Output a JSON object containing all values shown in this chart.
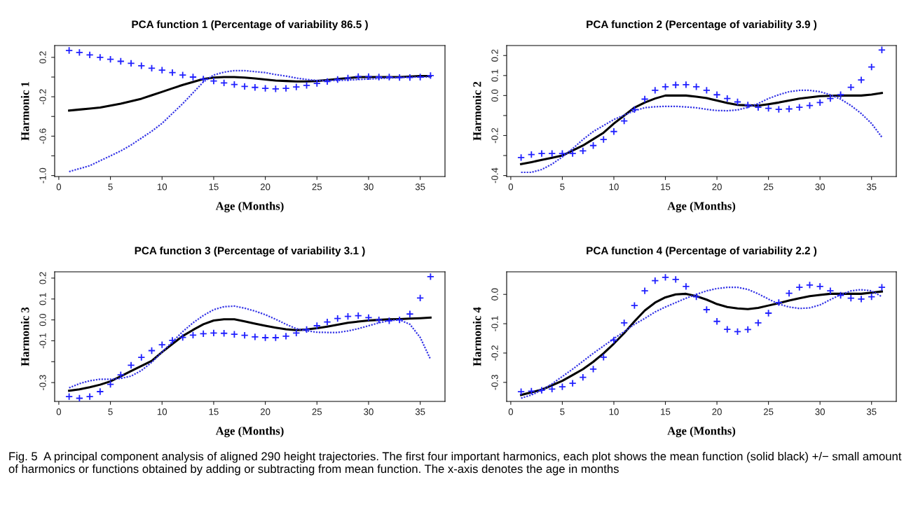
{
  "chart_data": [
    {
      "type": "line",
      "title": "PCA function 1 (Percentage of variability 86.5 )",
      "xlabel": "Age (Months)",
      "ylabel": "Harmonic 1",
      "xlim": [
        -0.4,
        37.4
      ],
      "xticks": [
        0,
        5,
        10,
        15,
        20,
        25,
        30,
        35
      ],
      "ylim": [
        -1.01,
        0.32
      ],
      "yticks": [
        {
          "value": -1.0,
          "label": "-1.0"
        },
        {
          "value": -0.8,
          "label": null
        },
        -0.6,
        {
          "value": -0.4,
          "label": null
        },
        -0.2,
        {
          "value": 0.0,
          "label": null
        },
        0.2
      ],
      "grid": false,
      "x": [
        1,
        2,
        3,
        4,
        5,
        6,
        7,
        8,
        9,
        10,
        11,
        12,
        13,
        14,
        15,
        16,
        17,
        18,
        19,
        20,
        21,
        22,
        23,
        24,
        25,
        26,
        27,
        28,
        29,
        30,
        31,
        32,
        33,
        34,
        35,
        36
      ],
      "series": [
        {
          "type": "line",
          "color": "#000000",
          "line_style": "solid",
          "values": [
            -0.34,
            -0.33,
            -0.32,
            -0.31,
            -0.29,
            -0.27,
            -0.245,
            -0.22,
            -0.185,
            -0.15,
            -0.115,
            -0.08,
            -0.05,
            -0.02,
            -0.005,
            0.0,
            0.0,
            -0.005,
            -0.015,
            -0.025,
            -0.035,
            -0.04,
            -0.045,
            -0.045,
            -0.04,
            -0.03,
            -0.02,
            -0.01,
            0.0,
            0.0,
            0.0,
            0.0,
            0.0,
            0.005,
            0.01,
            0.01
          ]
        },
        {
          "type": "scatter",
          "color": "#2020ff",
          "marker": "cross",
          "values": [
            0.27,
            0.25,
            0.225,
            0.2,
            0.18,
            0.16,
            0.14,
            0.115,
            0.09,
            0.07,
            0.045,
            0.02,
            0.0,
            -0.02,
            -0.04,
            -0.06,
            -0.075,
            -0.095,
            -0.105,
            -0.115,
            -0.12,
            -0.115,
            -0.1,
            -0.085,
            -0.065,
            -0.045,
            -0.025,
            -0.01,
            0.005,
            0.005,
            0.0,
            0.0,
            -0.005,
            -0.005,
            0.0,
            0.015
          ]
        },
        {
          "type": "line",
          "color": "#3535e6",
          "line_style": "dotted",
          "values": [
            -0.96,
            -0.93,
            -0.9,
            -0.85,
            -0.8,
            -0.75,
            -0.69,
            -0.62,
            -0.55,
            -0.47,
            -0.37,
            -0.27,
            -0.16,
            -0.05,
            0.02,
            0.05,
            0.065,
            0.065,
            0.055,
            0.045,
            0.025,
            0.01,
            -0.01,
            -0.025,
            -0.035,
            -0.035,
            -0.035,
            -0.03,
            -0.025,
            -0.02,
            -0.015,
            -0.01,
            -0.005,
            0.0,
            0.0,
            0.0
          ]
        }
      ]
    },
    {
      "type": "line",
      "title": "PCA function 2 (Percentage of variability 3.9 )",
      "xlabel": "Age (Months)",
      "ylabel": "Harmonic 2",
      "xlim": [
        -0.4,
        37.4
      ],
      "xticks": [
        0,
        5,
        10,
        15,
        20,
        25,
        30,
        35
      ],
      "ylim": [
        -0.405,
        0.25
      ],
      "yticks": [
        -0.4,
        {
          "value": -0.3,
          "label": null
        },
        -0.2,
        {
          "value": -0.1,
          "label": null
        },
        {
          "value": 0.0,
          "label": "0.0"
        },
        0.1,
        0.2
      ],
      "grid": false,
      "x": [
        1,
        2,
        3,
        4,
        5,
        6,
        7,
        8,
        9,
        10,
        11,
        12,
        13,
        14,
        15,
        16,
        17,
        18,
        19,
        20,
        21,
        22,
        23,
        24,
        25,
        26,
        27,
        28,
        29,
        30,
        31,
        32,
        33,
        34,
        35,
        36
      ],
      "series": [
        {
          "type": "line",
          "color": "#000000",
          "line_style": "solid",
          "values": [
            -0.343,
            -0.333,
            -0.322,
            -0.311,
            -0.3,
            -0.275,
            -0.25,
            -0.218,
            -0.186,
            -0.14,
            -0.1,
            -0.06,
            -0.035,
            -0.015,
            0.0,
            0.0,
            0.0,
            -0.006,
            -0.013,
            -0.025,
            -0.037,
            -0.047,
            -0.049,
            -0.05,
            -0.043,
            -0.035,
            -0.025,
            -0.015,
            -0.009,
            -0.003,
            -0.001,
            0.0,
            0.0,
            0.0,
            0.005,
            0.013
          ]
        },
        {
          "type": "scatter",
          "color": "#2020ff",
          "marker": "cross",
          "values": [
            -0.31,
            -0.295,
            -0.29,
            -0.29,
            -0.29,
            -0.29,
            -0.277,
            -0.25,
            -0.22,
            -0.18,
            -0.127,
            -0.07,
            -0.018,
            0.026,
            0.044,
            0.053,
            0.054,
            0.044,
            0.026,
            0.004,
            -0.015,
            -0.032,
            -0.047,
            -0.059,
            -0.064,
            -0.069,
            -0.067,
            -0.059,
            -0.05,
            -0.035,
            -0.015,
            0.004,
            0.041,
            0.078,
            0.143,
            0.228
          ]
        },
        {
          "type": "line",
          "color": "#3535e6",
          "line_style": "dotted",
          "values": [
            -0.384,
            -0.384,
            -0.37,
            -0.343,
            -0.307,
            -0.266,
            -0.22,
            -0.18,
            -0.15,
            -0.12,
            -0.098,
            -0.076,
            -0.061,
            -0.056,
            -0.054,
            -0.054,
            -0.057,
            -0.061,
            -0.069,
            -0.075,
            -0.076,
            -0.072,
            -0.059,
            -0.04,
            -0.015,
            0.004,
            0.019,
            0.026,
            0.026,
            0.019,
            0.004,
            -0.018,
            -0.05,
            -0.09,
            -0.14,
            -0.208
          ]
        }
      ]
    },
    {
      "type": "line",
      "title": "PCA function 3 (Percentage of variability 3.1 )",
      "xlabel": "Age (Months)",
      "ylabel": "Harmonic 3",
      "xlim": [
        -0.4,
        37.4
      ],
      "xticks": [
        0,
        5,
        10,
        15,
        20,
        25,
        30,
        35
      ],
      "ylim": [
        -0.39,
        0.23
      ],
      "yticks": [
        -0.3,
        {
          "value": -0.2,
          "label": null
        },
        -0.1,
        {
          "value": 0.0,
          "label": "0.0"
        },
        0.1,
        0.2
      ],
      "grid": false,
      "x": [
        1,
        2,
        3,
        4,
        5,
        6,
        7,
        8,
        9,
        10,
        11,
        12,
        13,
        14,
        15,
        16,
        17,
        18,
        19,
        20,
        21,
        22,
        23,
        24,
        25,
        26,
        27,
        28,
        29,
        30,
        31,
        32,
        33,
        34,
        35,
        36
      ],
      "series": [
        {
          "type": "line",
          "color": "#000000",
          "line_style": "solid",
          "values": [
            -0.339,
            -0.332,
            -0.322,
            -0.31,
            -0.294,
            -0.27,
            -0.245,
            -0.22,
            -0.196,
            -0.154,
            -0.115,
            -0.077,
            -0.048,
            -0.021,
            -0.003,
            0.003,
            0.003,
            -0.007,
            -0.018,
            -0.028,
            -0.037,
            -0.045,
            -0.049,
            -0.046,
            -0.04,
            -0.032,
            -0.023,
            -0.014,
            -0.008,
            -0.003,
            0.0,
            0.003,
            0.004,
            0.006,
            0.008,
            0.011
          ]
        },
        {
          "type": "scatter",
          "color": "#2020ff",
          "marker": "cross",
          "values": [
            -0.367,
            -0.375,
            -0.367,
            -0.343,
            -0.308,
            -0.263,
            -0.217,
            -0.179,
            -0.147,
            -0.119,
            -0.098,
            -0.084,
            -0.073,
            -0.066,
            -0.063,
            -0.064,
            -0.069,
            -0.074,
            -0.081,
            -0.085,
            -0.085,
            -0.078,
            -0.063,
            -0.046,
            -0.028,
            -0.01,
            0.007,
            0.017,
            0.02,
            0.011,
            0.0,
            -0.004,
            0.0,
            0.028,
            0.105,
            0.207
          ]
        },
        {
          "type": "line",
          "color": "#3535e6",
          "line_style": "dotted",
          "values": [
            -0.325,
            -0.305,
            -0.291,
            -0.284,
            -0.284,
            -0.28,
            -0.269,
            -0.242,
            -0.203,
            -0.154,
            -0.105,
            -0.056,
            -0.014,
            0.021,
            0.049,
            0.063,
            0.066,
            0.056,
            0.042,
            0.025,
            0.003,
            -0.021,
            -0.042,
            -0.052,
            -0.059,
            -0.06,
            -0.06,
            -0.053,
            -0.042,
            -0.028,
            -0.014,
            -0.003,
            0.0,
            -0.021,
            -0.084,
            -0.189
          ]
        }
      ]
    },
    {
      "type": "line",
      "title": "PCA function 4 (Percentage of variability 2.2 )",
      "xlabel": "Age (Months)",
      "ylabel": "Harmonic 4",
      "xlim": [
        -0.4,
        37.4
      ],
      "xticks": [
        0,
        5,
        10,
        15,
        20,
        25,
        30,
        35
      ],
      "ylim": [
        -0.365,
        0.077
      ],
      "yticks": [
        -0.3,
        -0.2,
        -0.1,
        {
          "value": 0.0,
          "label": "0.0"
        }
      ],
      "grid": false,
      "annotations": [
        "Fig. 5  A principal component analysis of aligned 290 height trajectories. The first four important harmonics, each plot shows the mean function (solid black) +/− small amount of harmonics or functions obtained by adding or subtracting from mean function. The x-axis denotes the age in months"
      ],
      "x": [
        1,
        2,
        3,
        4,
        5,
        6,
        7,
        8,
        9,
        10,
        11,
        12,
        13,
        14,
        15,
        16,
        17,
        18,
        19,
        20,
        21,
        22,
        23,
        24,
        25,
        26,
        27,
        28,
        29,
        30,
        31,
        32,
        33,
        34,
        35,
        36
      ],
      "series": [
        {
          "type": "line",
          "color": "#000000",
          "line_style": "solid",
          "values": [
            -0.343,
            -0.334,
            -0.325,
            -0.31,
            -0.295,
            -0.275,
            -0.255,
            -0.23,
            -0.201,
            -0.168,
            -0.132,
            -0.092,
            -0.055,
            -0.028,
            -0.01,
            0.0,
            0.002,
            -0.006,
            -0.018,
            -0.033,
            -0.043,
            -0.048,
            -0.05,
            -0.046,
            -0.038,
            -0.03,
            -0.021,
            -0.013,
            -0.006,
            -0.002,
            0.002,
            0.002,
            0.002,
            0.002,
            0.006,
            0.01
          ]
        },
        {
          "type": "scatter",
          "color": "#2020ff",
          "marker": "cross",
          "values": [
            -0.332,
            -0.33,
            -0.327,
            -0.323,
            -0.315,
            -0.303,
            -0.283,
            -0.255,
            -0.214,
            -0.156,
            -0.097,
            -0.038,
            0.012,
            0.047,
            0.058,
            0.051,
            0.027,
            -0.008,
            -0.052,
            -0.092,
            -0.119,
            -0.127,
            -0.12,
            -0.097,
            -0.064,
            -0.028,
            0.004,
            0.024,
            0.032,
            0.027,
            0.012,
            -0.003,
            -0.013,
            -0.016,
            -0.008,
            0.024
          ]
        },
        {
          "type": "line",
          "color": "#3535e6",
          "line_style": "dotted",
          "values": [
            -0.354,
            -0.343,
            -0.327,
            -0.305,
            -0.28,
            -0.255,
            -0.228,
            -0.201,
            -0.176,
            -0.151,
            -0.127,
            -0.102,
            -0.082,
            -0.06,
            -0.043,
            -0.028,
            -0.013,
            0.0,
            0.012,
            0.02,
            0.024,
            0.024,
            0.017,
            0.002,
            -0.016,
            -0.033,
            -0.043,
            -0.048,
            -0.046,
            -0.036,
            -0.018,
            -0.001,
            0.012,
            0.016,
            0.012,
            -0.008
          ]
        }
      ]
    }
  ]
}
